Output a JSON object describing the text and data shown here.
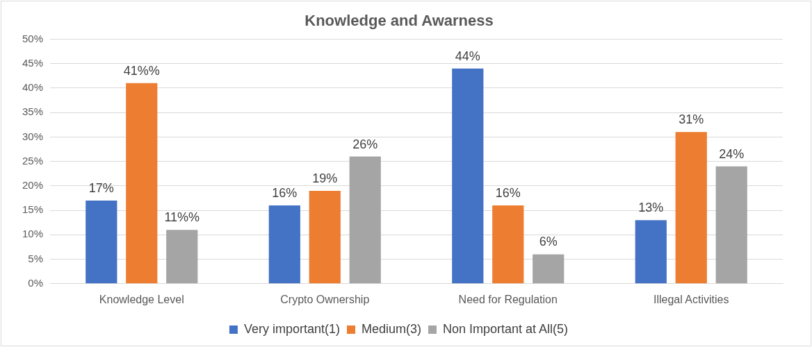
{
  "chart_data": {
    "type": "bar",
    "title": "Knowledge and Awarness",
    "categories": [
      "Knowledge Level",
      "Crypto Ownership",
      "Need for Regulation",
      "Illegal Activities"
    ],
    "series": [
      {
        "name": "Very important(1)",
        "color": "#4472c4",
        "values": [
          17,
          16,
          44,
          13
        ],
        "value_labels": [
          "17%",
          "16%",
          "44%",
          "13%"
        ]
      },
      {
        "name": "Medium(3)",
        "color": "#ed7d31",
        "values": [
          41,
          19,
          16,
          31
        ],
        "value_labels": [
          "41%%",
          "19%",
          "16%",
          "31%"
        ]
      },
      {
        "name": "Non Important at All(5)",
        "color": "#a5a5a5",
        "values": [
          11,
          26,
          6,
          24
        ],
        "value_labels": [
          "11%%",
          "26%",
          "6%",
          "24%"
        ]
      }
    ],
    "ylim": [
      0,
      50
    ],
    "yticks": [
      {
        "value": 0,
        "label": "0%"
      },
      {
        "value": 5,
        "label": "5%"
      },
      {
        "value": 10,
        "label": "10%"
      },
      {
        "value": 15,
        "label": "15%"
      },
      {
        "value": 20,
        "label": "20%"
      },
      {
        "value": 25,
        "label": "25%"
      },
      {
        "value": 30,
        "label": "30%"
      },
      {
        "value": 35,
        "label": "35%"
      },
      {
        "value": 40,
        "label": "40%"
      },
      {
        "value": 45,
        "label": "45%"
      },
      {
        "value": 50,
        "label": "50%"
      }
    ],
    "grid": "y",
    "legend": "bottom"
  }
}
